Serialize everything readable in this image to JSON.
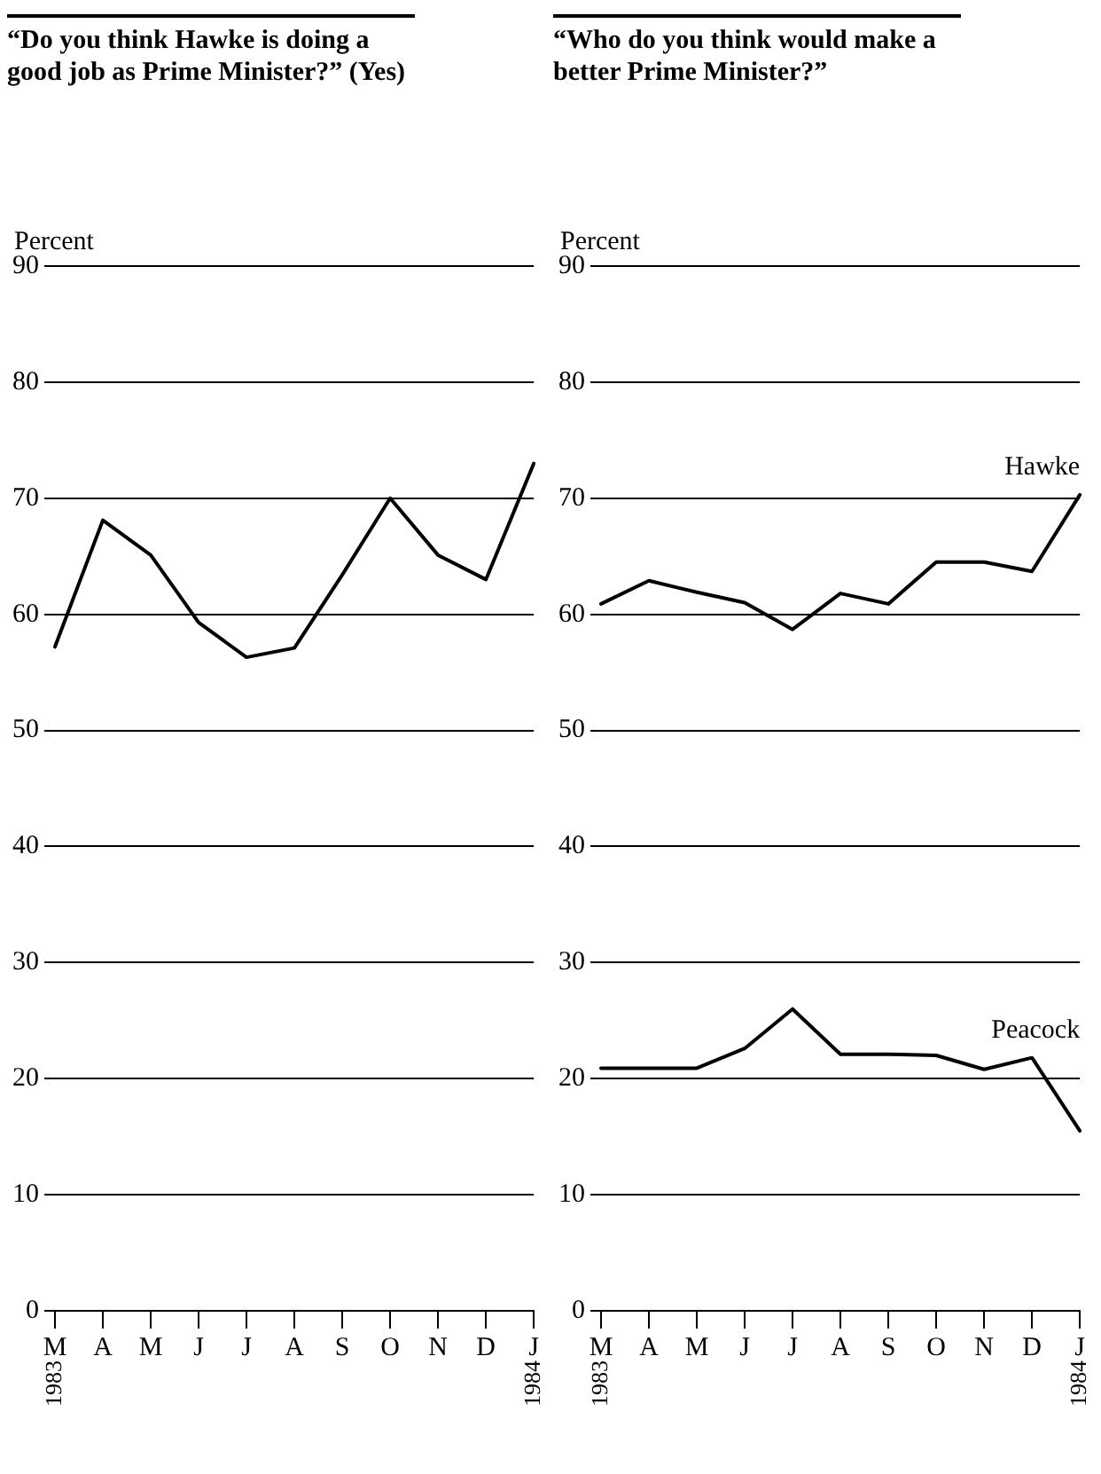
{
  "chart_data": [
    {
      "type": "line",
      "title": "“Do you think Hawke is doing a good job as Prime Minister?” (Yes)",
      "ylabel": "Percent",
      "categories": [
        "M",
        "A",
        "M",
        "J",
        "J",
        "A",
        "S",
        "O",
        "N",
        "D",
        "J"
      ],
      "series": [
        {
          "color": "#000000",
          "values": [
            57.2,
            68.1,
            65.1,
            59.3,
            56.3,
            57.1,
            63.4,
            70,
            65.1,
            63,
            73
          ]
        }
      ],
      "ylim": [
        0,
        90
      ],
      "yticks": [
        0,
        10,
        20,
        30,
        40,
        50,
        60,
        70,
        80,
        90
      ],
      "grid": "y",
      "legend": false,
      "marker": "none",
      "line_style": "solid",
      "annotations": [
        "1983",
        "1984"
      ]
    },
    {
      "type": "line",
      "title": "“Who do you think would make a better Prime Minister?”",
      "ylabel": "Percent",
      "categories": [
        "M",
        "A",
        "M",
        "J",
        "J",
        "A",
        "S",
        "O",
        "N",
        "D",
        "J"
      ],
      "series": [
        {
          "name": "Hawke",
          "color": "#000000",
          "values": [
            60.9,
            62.9,
            61.9,
            61,
            58.7,
            61.8,
            60.9,
            64.5,
            64.5,
            63.7,
            70.3
          ]
        },
        {
          "name": "Peacock",
          "color": "#000000",
          "values": [
            20.9,
            20.9,
            20.9,
            22.6,
            26,
            22.1,
            22.1,
            22,
            20.8,
            21.8,
            15.5
          ]
        }
      ],
      "ylim": [
        0,
        90
      ],
      "yticks": [
        0,
        10,
        20,
        30,
        40,
        50,
        60,
        70,
        80,
        90
      ],
      "grid": "y",
      "legend": false,
      "marker": "none",
      "line_style": "solid",
      "annotations": [
        "1983",
        "1984"
      ]
    }
  ]
}
